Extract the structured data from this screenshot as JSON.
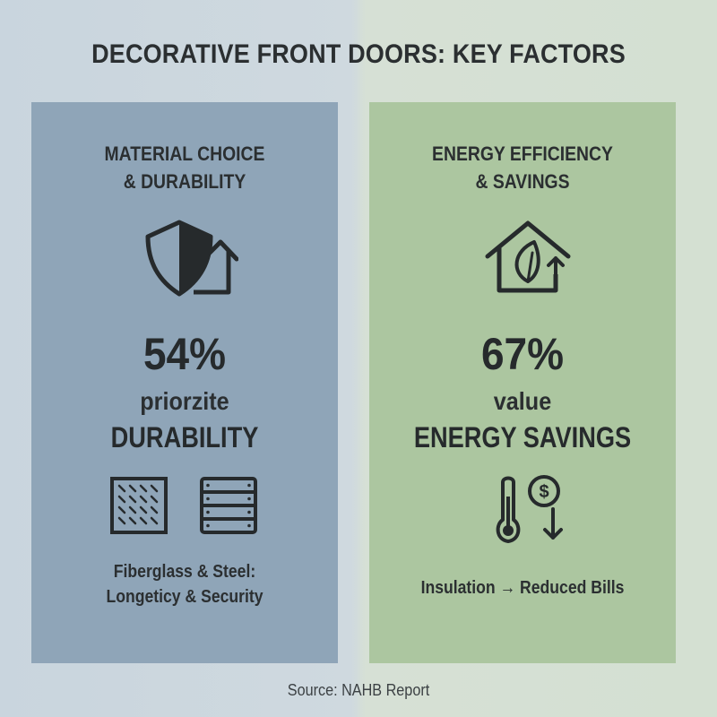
{
  "title": "DECORATIVE FRONT DOORS: KEY FACTORS",
  "panels": [
    {
      "heading": [
        "MATERIAL CHOICE",
        "& DURABILITY"
      ],
      "icon": "shield-house-icon",
      "stat": {
        "value": "54%",
        "line1": "priorzite",
        "line2": "DURABILITY"
      },
      "material_icons": [
        "fiberglass-panel-icon",
        "steel-panel-icon"
      ],
      "caption": [
        "Fiberglass & Steel:",
        "Longeticy & Security"
      ],
      "color": "#8fa5b8"
    },
    {
      "heading": [
        "ENERGY EFFICIENCY",
        "& SAVINGS"
      ],
      "icon": "eco-house-icon",
      "stat": {
        "value": "67%",
        "line1": "value",
        "line2": "ENERGY SAVINGS"
      },
      "detail_icon": "thermometer-dollar-icon",
      "caption": [
        "Insulation → Reduced Bills"
      ],
      "color": "#acc6a0"
    }
  ],
  "source": "Source: NAHB Report"
}
